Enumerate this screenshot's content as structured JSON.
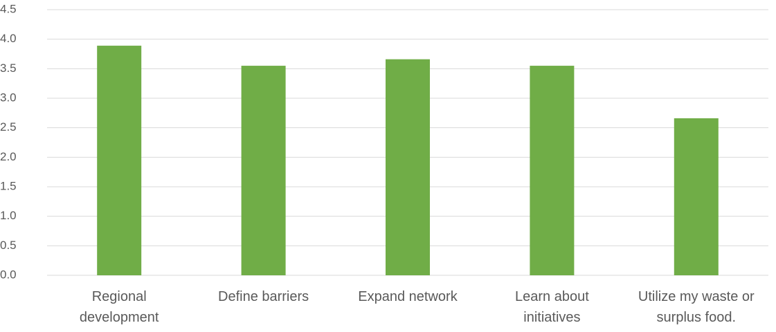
{
  "chart_data": {
    "type": "bar",
    "categories": [
      "Regional development",
      "Define barriers",
      "Expand network",
      "Learn about initiatives",
      "Utilize my waste or surplus food."
    ],
    "values": [
      3.89,
      3.55,
      3.66,
      3.55,
      2.66
    ],
    "color": "#70ad47",
    "ylim": [
      0,
      4.5
    ],
    "yticks": [
      {
        "value": 0,
        "label": "0.0"
      },
      0.5,
      {
        "value": 1,
        "label": "1.0"
      },
      1.5,
      {
        "value": 2,
        "label": "2.0"
      },
      2.5,
      {
        "value": 3,
        "label": "3.0"
      },
      3.5,
      {
        "value": 4,
        "label": "4.0"
      },
      4.5
    ],
    "grid": true
  }
}
